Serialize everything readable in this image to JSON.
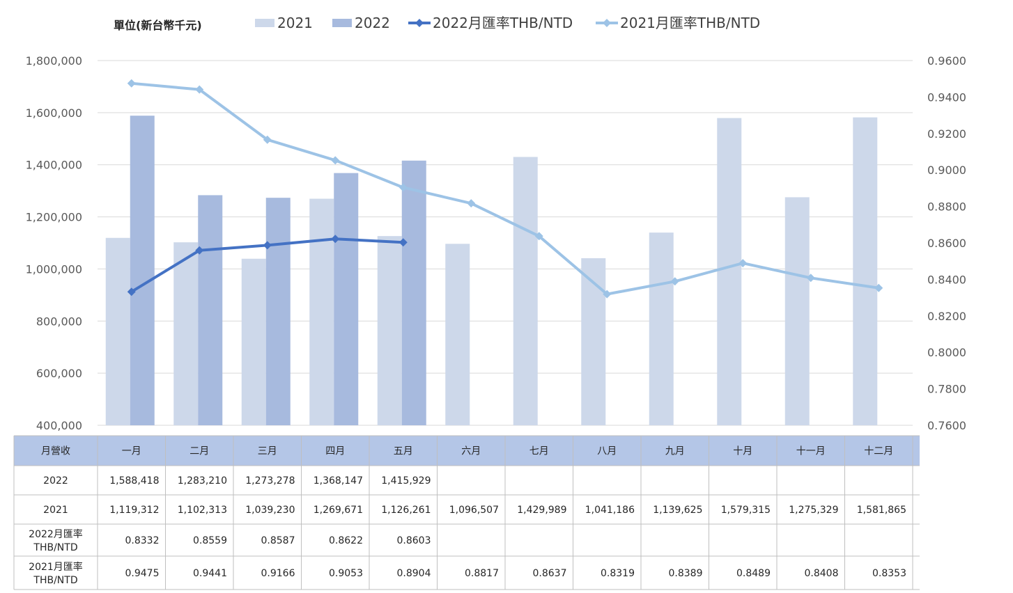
{
  "chart_data": {
    "type": "bar",
    "unit_label": "單位(新台幣千元)",
    "categories": [
      "一月",
      "二月",
      "三月",
      "四月",
      "五月",
      "六月",
      "七月",
      "八月",
      "九月",
      "十月",
      "十一月",
      "十二月"
    ],
    "series": [
      {
        "name": "2021",
        "kind": "bar",
        "axis": "left",
        "color": "#cdd8ea",
        "values": [
          1119312,
          1102313,
          1039230,
          1269671,
          1126261,
          1096507,
          1429989,
          1041186,
          1139625,
          1579315,
          1275329,
          1581865
        ]
      },
      {
        "name": "2022",
        "kind": "bar",
        "axis": "left",
        "color": "#a7bade",
        "values": [
          1588418,
          1283210,
          1273278,
          1368147,
          1415929,
          null,
          null,
          null,
          null,
          null,
          null,
          null
        ]
      },
      {
        "name": "2022月匯率THB/NTD",
        "kind": "line",
        "axis": "right",
        "color": "#4472c4",
        "values": [
          0.8332,
          0.8559,
          0.8587,
          0.8622,
          0.8603,
          null,
          null,
          null,
          null,
          null,
          null,
          null
        ]
      },
      {
        "name": "2021月匯率THB/NTD",
        "kind": "line",
        "axis": "right",
        "color": "#9dc3e6",
        "values": [
          0.9475,
          0.9441,
          0.9166,
          0.9053,
          0.8904,
          0.8817,
          0.8637,
          0.8319,
          0.8389,
          0.8489,
          0.8408,
          0.8353
        ]
      }
    ],
    "left_axis": {
      "min": 400000,
      "max": 1800000,
      "step": 200000,
      "tick_labels": [
        "400,000",
        "600,000",
        "800,000",
        "1,000,000",
        "1,200,000",
        "1,400,000",
        "1,600,000",
        "1,800,000"
      ]
    },
    "right_axis": {
      "min": 0.76,
      "max": 0.96,
      "step": 0.02,
      "tick_labels": [
        "0.7600",
        "0.7800",
        "0.8000",
        "0.8200",
        "0.8400",
        "0.8600",
        "0.8800",
        "0.9000",
        "0.9200",
        "0.9400",
        "0.9600"
      ]
    },
    "grid": true,
    "legend_position": "top",
    "table": {
      "header_label": "月營收",
      "rows": [
        {
          "label": "2022",
          "cells": [
            "1,588,418",
            "1,283,210",
            "1,273,278",
            "1,368,147",
            "1,415,929",
            "",
            "",
            "",
            "",
            "",
            "",
            ""
          ]
        },
        {
          "label": "2021",
          "cells": [
            "1,119,312",
            "1,102,313",
            "1,039,230",
            "1,269,671",
            "1,126,261",
            "1,096,507",
            "1,429,989",
            "1,041,186",
            "1,139,625",
            "1,579,315",
            "1,275,329",
            "1,581,865"
          ]
        },
        {
          "label": "2022月匯率THB/NTD",
          "label_lines": [
            "2022月匯率",
            "THB/NTD"
          ],
          "cells": [
            "0.8332",
            "0.8559",
            "0.8587",
            "0.8622",
            "0.8603",
            "",
            "",
            "",
            "",
            "",
            "",
            ""
          ]
        },
        {
          "label": "2021月匯率THB/NTD",
          "label_lines": [
            "2021月匯率",
            "THB/NTD"
          ],
          "cells": [
            "0.9475",
            "0.9441",
            "0.9166",
            "0.9053",
            "0.8904",
            "0.8817",
            "0.8637",
            "0.8319",
            "0.8389",
            "0.8489",
            "0.8408",
            "0.8353"
          ]
        }
      ]
    }
  }
}
